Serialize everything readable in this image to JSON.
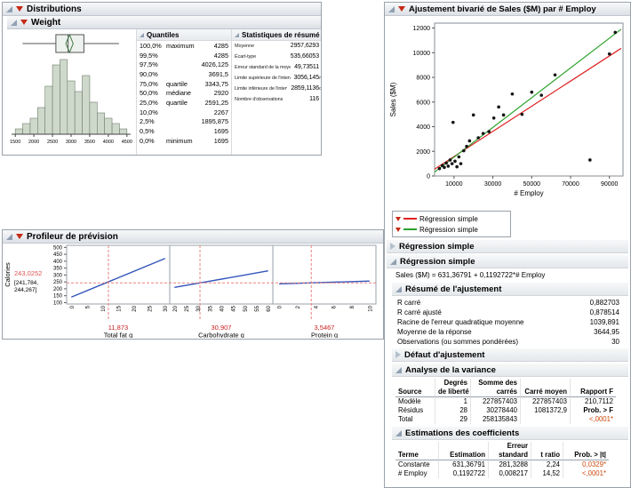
{
  "colors": {
    "sig_value": "#cc4a0e",
    "profiler_value": "#e05353",
    "profiler_current": "#cc2222",
    "regression_red": "#dd2222",
    "regression_green": "#2ba22b",
    "profiler_line_blue": "#3355bb",
    "histogram_fill": "#cfd9cb"
  },
  "distributions": {
    "title": "Distributions",
    "weight": {
      "title": "Weight",
      "quantiles": {
        "title": "Quantiles",
        "rows": [
          {
            "pct": "100,0%",
            "name": "maximum",
            "value": "4285"
          },
          {
            "pct": "99,5%",
            "name": "",
            "value": "4285"
          },
          {
            "pct": "97,5%",
            "name": "",
            "value": "4026,125"
          },
          {
            "pct": "90,0%",
            "name": "",
            "value": "3691,5"
          },
          {
            "pct": "75,0%",
            "name": "quartile",
            "value": "3343,75"
          },
          {
            "pct": "50,0%",
            "name": "médiane",
            "value": "2920"
          },
          {
            "pct": "25,0%",
            "name": "quartile",
            "value": "2591,25"
          },
          {
            "pct": "10,0%",
            "name": "",
            "value": "2267"
          },
          {
            "pct": "2,5%",
            "name": "",
            "value": "1895,875"
          },
          {
            "pct": "0,5%",
            "name": "",
            "value": "1695"
          },
          {
            "pct": "0,0%",
            "name": "minimum",
            "value": "1695"
          }
        ]
      },
      "summary_stats": {
        "title": "Statistiques de résumé",
        "rows": [
          {
            "label": "Moyenne",
            "value": "2957,6293"
          },
          {
            "label": "Écart-type",
            "value": "535,66053"
          },
          {
            "label": "Erreur standard de la moyenne",
            "value": "49,73511"
          },
          {
            "label": "Limite supérieure de l'intervalle de confiance de la moyenne pour 95 %",
            "value": "3056,145"
          },
          {
            "label": "Limite inférieure de l'intervalle de confiance de la moyenne pour 95 %",
            "value": "2859,1136"
          },
          {
            "label": "Nombre d'observations",
            "value": "116"
          }
        ]
      }
    }
  },
  "profiler": {
    "title": "Profileur de prévision",
    "response": "Calories",
    "predicted_value": "243,0252",
    "ci_line1": "[241,784,",
    "ci_line2": "244,267]"
  },
  "bivariate": {
    "title": "Ajustement bivarié de Sales ($M) par # Employ",
    "legend": [
      {
        "label": "Régression simple",
        "color": "#dd2222"
      },
      {
        "label": "Régression simple",
        "color": "#2ba22b"
      }
    ],
    "fit_collapsed_title": "Régression simple",
    "fit_title": "Régression simple",
    "equation": "Sales ($M) = 631,36791 + 0,1192722*# Employ",
    "fit_summary": {
      "title": "Résumé de l'ajustement",
      "rows": [
        {
          "label": "R carré",
          "value": "0,882703"
        },
        {
          "label": "R carré ajusté",
          "value": "0,878514"
        },
        {
          "label": "Racine de l'erreur quadratique moyenne",
          "value": "1039,891"
        },
        {
          "label": "Moyenne de la réponse",
          "value": "3644,95"
        },
        {
          "label": "Observations (ou sommes pondérées)",
          "value": "30"
        }
      ]
    },
    "lack_of_fit_title": "Défaut d'ajustement",
    "anova": {
      "title": "Analyse de la variance",
      "header_line1": [
        "",
        "Degrés",
        "Somme des",
        "",
        ""
      ],
      "header_line2": [
        "Source",
        "de liberté",
        "carrés",
        "Carré moyen",
        "Rapport F"
      ],
      "bold_cells": [
        "Prob. > F"
      ],
      "rows": [
        [
          "Modèle",
          "1",
          "227857403",
          "227857403",
          "210,7112"
        ],
        [
          "Résidus",
          "28",
          "30278440",
          "1081372,9",
          "Prob. > F"
        ],
        [
          "Total",
          "29",
          "258135843",
          "",
          "<,0001*"
        ]
      ]
    },
    "coefficients": {
      "title": "Estimations des coefficients",
      "header_line1": [
        "",
        "",
        "Erreur",
        "",
        ""
      ],
      "header_line2": [
        "Terme",
        "Estimation",
        "standard",
        "t ratio",
        "Prob. > |t|"
      ],
      "bold_cells": [],
      "rows": [
        [
          "Constante",
          "631,36791",
          "281,3288",
          "2,24",
          "0,0329*"
        ],
        [
          "# Employ",
          "0,1192722",
          "0,008217",
          "14,52",
          "<,0001*"
        ]
      ]
    }
  },
  "chart_data": [
    {
      "type": "bar",
      "subtype": "histogram-with-boxplot",
      "title": "Weight",
      "xlim": [
        1400,
        4600
      ],
      "bin_start": 1500,
      "bin_width": 200,
      "counts": [
        1,
        2,
        3,
        5,
        9,
        13,
        14,
        10,
        8,
        11,
        6,
        4,
        3,
        2,
        1
      ],
      "x_ticks": [
        1500,
        2000,
        2500,
        3000,
        3500,
        4000,
        4500
      ],
      "boxplot": {
        "min": 1695,
        "q1": 2591.25,
        "median": 2920,
        "q3": 3343.75,
        "max": 4285,
        "mean": 2957.63,
        "ci_low": 2859.11,
        "ci_high": 3056.15
      }
    },
    {
      "type": "line",
      "subtype": "prediction-profiler",
      "ylabel": "Calories",
      "ylim": [
        90,
        515
      ],
      "y_ticks": [
        100,
        150,
        200,
        250,
        300,
        350,
        400,
        450,
        500
      ],
      "y_current": 243.0252,
      "panels": [
        {
          "name": "Total fat g",
          "xlim": [
            -1.5,
            31.5
          ],
          "x_ticks": [
            0,
            5,
            10,
            15,
            20,
            25,
            30
          ],
          "current": 11.873,
          "current_label": "11,873",
          "line": [
            [
              0,
              140
            ],
            [
              30,
              420
            ]
          ]
        },
        {
          "name": "Carbohydrate g",
          "xlim": [
            18,
            62
          ],
          "x_ticks": [
            20,
            25,
            30,
            35,
            40,
            45,
            50,
            55,
            60
          ],
          "current": 30.907,
          "current_label": "30,907",
          "line": [
            [
              20,
              210
            ],
            [
              60,
              330
            ]
          ]
        },
        {
          "name": "Protein g",
          "xlim": [
            -0.7,
            10.7
          ],
          "x_ticks": [
            0,
            2,
            4,
            6,
            8,
            10
          ],
          "current": 3.5467,
          "current_label": "3,5467",
          "line": [
            [
              0,
              236
            ],
            [
              10,
              256
            ]
          ]
        }
      ]
    },
    {
      "type": "scatter",
      "xlabel": "# Employ",
      "ylabel": "Sales ($M)",
      "xlim": [
        0,
        97000
      ],
      "ylim": [
        0,
        12400
      ],
      "x_ticks": [
        10000,
        30000,
        50000,
        70000,
        90000
      ],
      "y_ticks": [
        0,
        2000,
        4000,
        6000,
        8000,
        10000,
        12000
      ],
      "points": [
        [
          2500,
          600
        ],
        [
          4000,
          850
        ],
        [
          5000,
          700
        ],
        [
          6000,
          1050
        ],
        [
          7000,
          800
        ],
        [
          8000,
          1300
        ],
        [
          9000,
          1000
        ],
        [
          9500,
          4350
        ],
        [
          10500,
          1200
        ],
        [
          11500,
          750
        ],
        [
          12500,
          1550
        ],
        [
          13500,
          1000
        ],
        [
          15000,
          2050
        ],
        [
          16500,
          2400
        ],
        [
          18000,
          2850
        ],
        [
          20000,
          4950
        ],
        [
          22500,
          3100
        ],
        [
          25000,
          3450
        ],
        [
          28000,
          3600
        ],
        [
          30500,
          4700
        ],
        [
          33000,
          5600
        ],
        [
          35500,
          4950
        ],
        [
          40000,
          6650
        ],
        [
          45000,
          5000
        ],
        [
          50000,
          6800
        ],
        [
          55000,
          6550
        ],
        [
          62000,
          8200
        ],
        [
          80000,
          1300
        ],
        [
          90000,
          9900
        ],
        [
          93000,
          11650
        ]
      ],
      "fit_lines": [
        {
          "name": "Régression simple",
          "color": "#dd2222",
          "from": [
            0,
            560
          ],
          "to": [
            96000,
            10350
          ]
        },
        {
          "name": "Régression simple",
          "color": "#2ba22b",
          "from": [
            0,
            320
          ],
          "to": [
            96000,
            11900
          ]
        }
      ]
    }
  ]
}
